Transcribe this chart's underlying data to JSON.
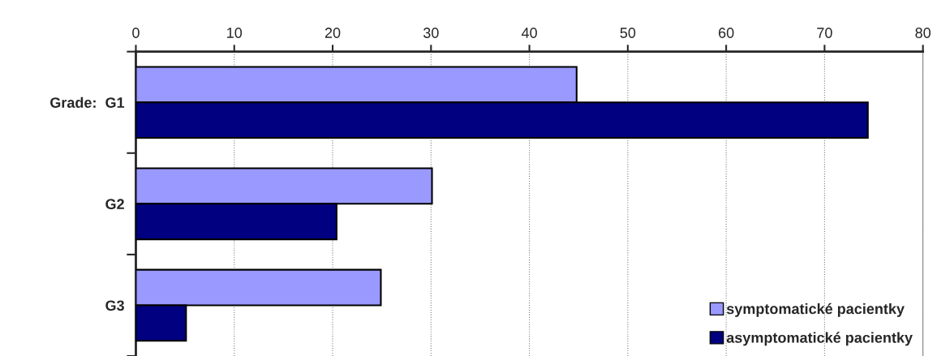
{
  "chart_data": {
    "type": "bar",
    "orientation": "horizontal",
    "categories": [
      "Grade:  G1",
      "G2",
      "G3"
    ],
    "series": [
      {
        "name": "symptomatické pacientky",
        "color": "#9999ff",
        "values": [
          44.8,
          30.1,
          24.9
        ]
      },
      {
        "name": "asymptomatické pacientky",
        "color": "#000080",
        "values": [
          74.4,
          20.4,
          5.1
        ]
      }
    ],
    "xlim": [
      0,
      80
    ],
    "xticks": [
      0,
      10,
      20,
      30,
      40,
      50,
      60,
      70,
      80
    ],
    "grid": "x",
    "legend": "bottom right"
  }
}
